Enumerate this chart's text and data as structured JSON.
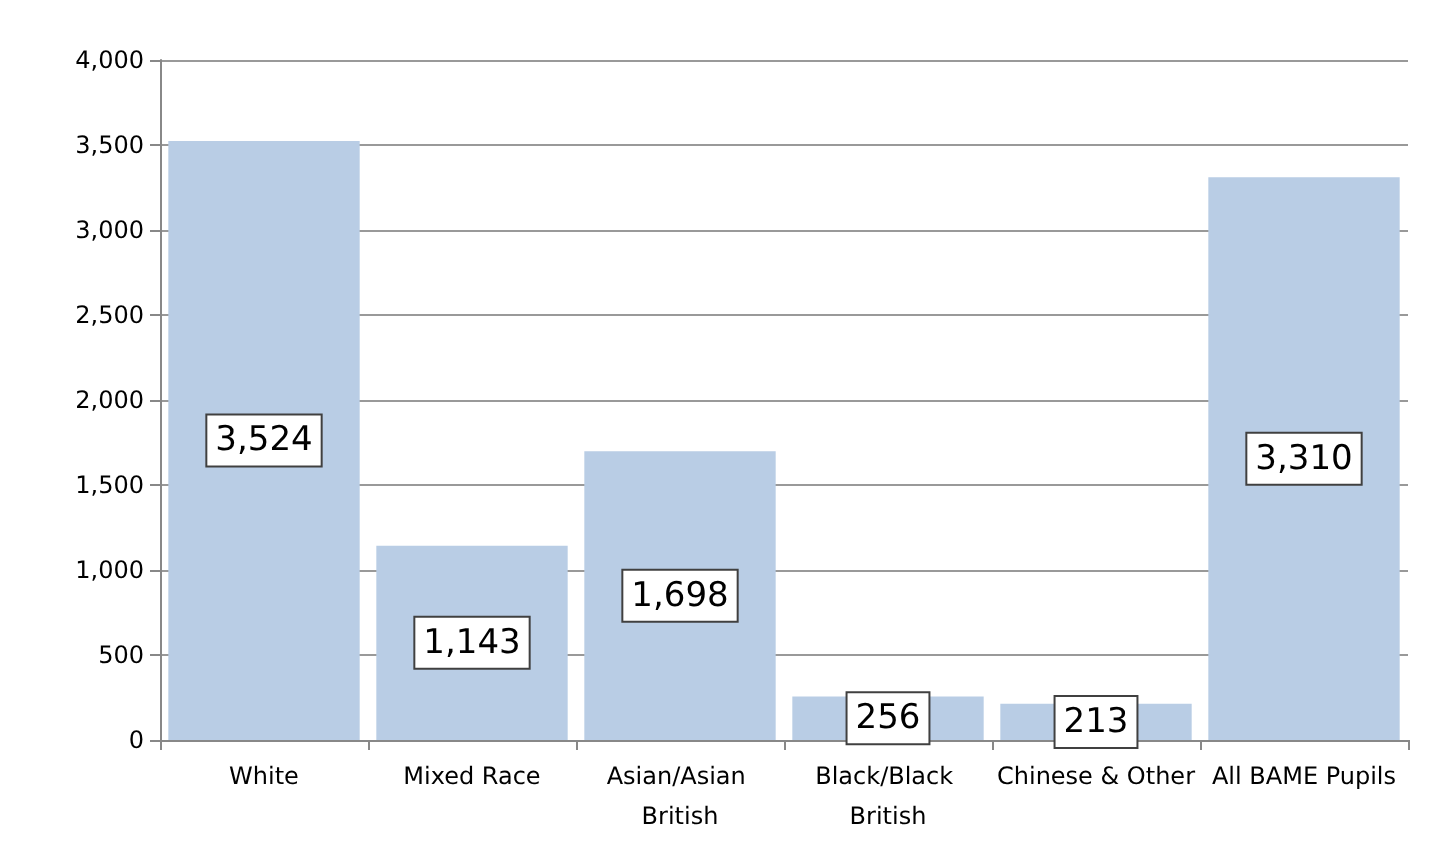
{
  "chart_data": {
    "type": "bar",
    "categories": [
      "White",
      "Mixed Race",
      "Asian/Asian British",
      "Black/Black British",
      "Chinese & Other",
      "All BAME Pupils"
    ],
    "values": [
      3524,
      1143,
      1698,
      256,
      213,
      3310
    ],
    "color": "#b9cde5",
    "ylim": [
      0,
      4000
    ],
    "yticks": [
      {
        "value": 0,
        "label": "0"
      },
      {
        "value": 500,
        "label": "500"
      },
      {
        "value": 1000,
        "label": "1,000"
      },
      {
        "value": 1500,
        "label": "1,500"
      },
      {
        "value": 2000,
        "label": "2,000"
      },
      {
        "value": 2500,
        "label": "2,500"
      },
      {
        "value": 3000,
        "label": "3,000"
      },
      {
        "value": 3500,
        "label": "3,500"
      },
      {
        "value": 4000,
        "label": "4,000"
      }
    ],
    "value_labels": [
      "3,524",
      "1,143",
      "1,698",
      "256",
      "213",
      "3,310"
    ],
    "grid": "y"
  }
}
